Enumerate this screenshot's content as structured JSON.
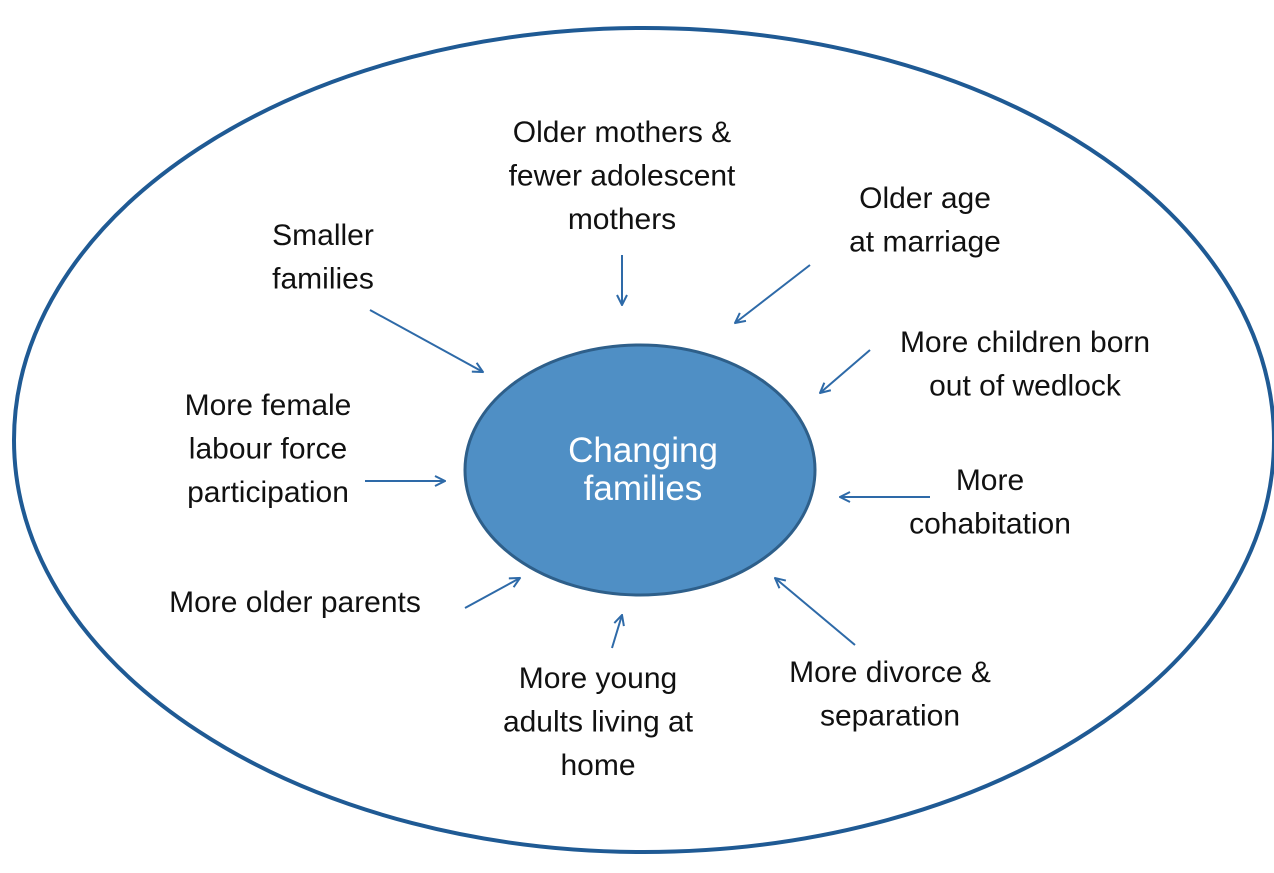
{
  "center": {
    "lines": [
      "Changing",
      "families"
    ]
  },
  "nodes": [
    {
      "lines": [
        "Older mothers &",
        "fewer adolescent",
        "mothers"
      ]
    },
    {
      "lines": [
        "Older age",
        "at marriage"
      ]
    },
    {
      "lines": [
        "Smaller",
        "families"
      ]
    },
    {
      "lines": [
        "More children born",
        "out of wedlock"
      ]
    },
    {
      "lines": [
        "More female",
        "labour force",
        "participation"
      ]
    },
    {
      "lines": [
        "More",
        "cohabitation"
      ]
    },
    {
      "lines": [
        "More older parents"
      ]
    },
    {
      "lines": [
        "More young",
        "adults living at",
        "home"
      ]
    },
    {
      "lines": [
        "More divorce &",
        "separation"
      ]
    }
  ]
}
